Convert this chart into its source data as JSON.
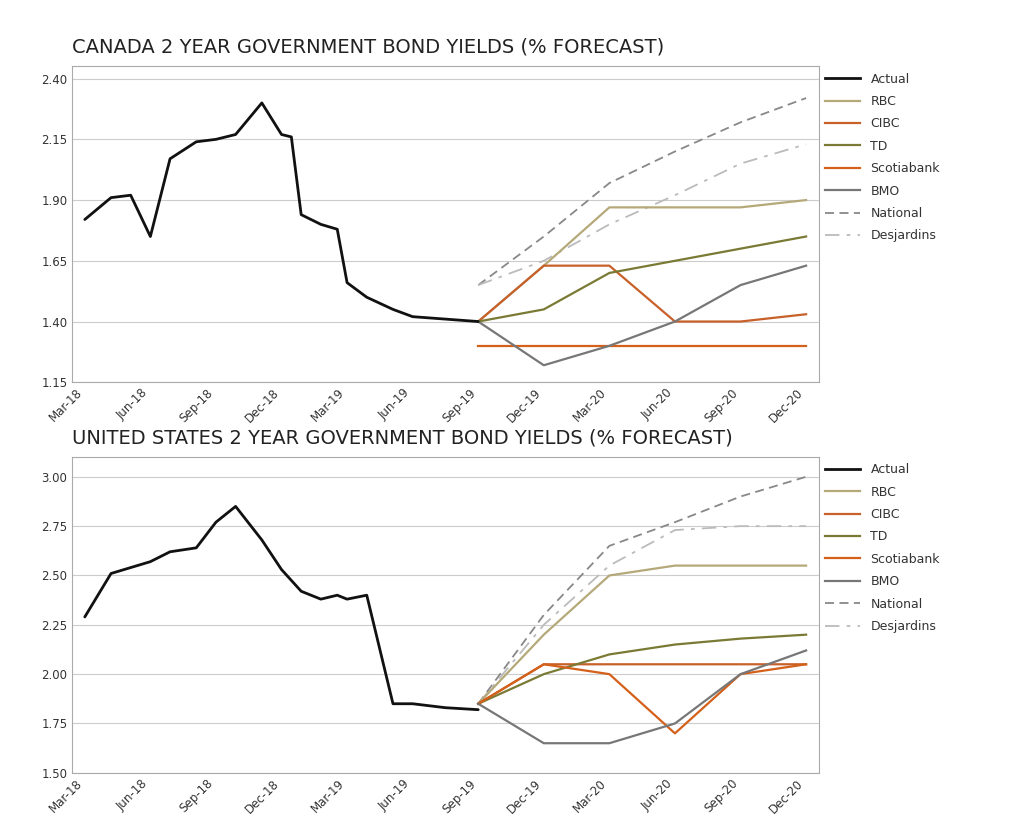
{
  "canada": {
    "title": "CANADA 2 YEAR GOVERNMENT BOND YIELDS (% FORECAST)",
    "ylim": [
      1.15,
      2.45
    ],
    "yticks": [
      1.15,
      1.4,
      1.65,
      1.9,
      2.15,
      2.4
    ],
    "actual_x": [
      0,
      0.4,
      0.7,
      1.0,
      1.3,
      1.7,
      2.0,
      2.3,
      2.7,
      3.0,
      3.15,
      3.3,
      3.6,
      3.85,
      4.0,
      4.3,
      4.7,
      5.0,
      6.0
    ],
    "actual_y": [
      1.82,
      1.91,
      1.92,
      1.75,
      2.07,
      2.14,
      2.15,
      2.17,
      2.3,
      2.17,
      2.16,
      1.84,
      1.8,
      1.78,
      1.56,
      1.5,
      1.45,
      1.42,
      1.4
    ],
    "rbc_x": [
      6,
      7,
      8,
      9,
      10,
      11
    ],
    "rbc_y": [
      1.4,
      1.63,
      1.87,
      1.87,
      1.87,
      1.9
    ],
    "cibc_x": [
      6,
      7,
      8,
      9,
      10,
      11
    ],
    "cibc_y": [
      1.4,
      1.63,
      1.63,
      1.4,
      1.4,
      1.43
    ],
    "td_x": [
      6,
      7,
      8,
      9,
      10,
      11
    ],
    "td_y": [
      1.4,
      1.45,
      1.6,
      1.65,
      1.7,
      1.75
    ],
    "scotiabank_x": [
      6,
      7,
      8,
      9,
      10,
      11
    ],
    "scotiabank_y": [
      1.3,
      1.3,
      1.3,
      1.3,
      1.3,
      1.3
    ],
    "bmo_x": [
      6,
      7,
      8,
      9,
      10,
      11
    ],
    "bmo_y": [
      1.4,
      1.22,
      1.3,
      1.4,
      1.55,
      1.63
    ],
    "national_x": [
      6,
      7,
      8,
      9,
      10,
      11
    ],
    "national_y": [
      1.55,
      1.75,
      1.97,
      2.1,
      2.22,
      2.32
    ],
    "desjardins_x": [
      6,
      7,
      8,
      9,
      10,
      11
    ],
    "desjardins_y": [
      1.55,
      1.65,
      1.8,
      1.92,
      2.05,
      2.13
    ]
  },
  "us": {
    "title": "UNITED STATES 2 YEAR GOVERNMENT BOND YIELDS (% FORECAST)",
    "ylim": [
      1.5,
      3.1
    ],
    "yticks": [
      1.5,
      1.75,
      2.0,
      2.25,
      2.5,
      2.75,
      3.0
    ],
    "actual_x": [
      0,
      0.4,
      0.7,
      1.0,
      1.3,
      1.7,
      2.0,
      2.3,
      2.7,
      3.0,
      3.3,
      3.6,
      3.85,
      4.0,
      4.3,
      4.7,
      5.0,
      5.5,
      6.0
    ],
    "actual_y": [
      2.29,
      2.51,
      2.54,
      2.57,
      2.62,
      2.64,
      2.77,
      2.85,
      2.68,
      2.53,
      2.42,
      2.38,
      2.4,
      2.38,
      2.4,
      1.85,
      1.85,
      1.83,
      1.82
    ],
    "rbc_x": [
      6,
      7,
      8,
      9,
      10,
      11
    ],
    "rbc_y": [
      1.85,
      2.2,
      2.5,
      2.55,
      2.55,
      2.55
    ],
    "cibc_x": [
      6,
      7,
      8,
      9,
      10,
      11
    ],
    "cibc_y": [
      1.85,
      2.05,
      2.05,
      2.05,
      2.05,
      2.05
    ],
    "td_x": [
      6,
      7,
      8,
      9,
      10,
      11
    ],
    "td_y": [
      1.85,
      2.0,
      2.1,
      2.15,
      2.18,
      2.2
    ],
    "scotiabank_x": [
      6,
      7,
      8,
      9,
      10,
      11
    ],
    "scotiabank_y": [
      1.85,
      2.05,
      2.0,
      1.7,
      2.0,
      2.05
    ],
    "bmo_x": [
      6,
      7,
      8,
      9,
      10,
      11
    ],
    "bmo_y": [
      1.85,
      1.65,
      1.65,
      1.75,
      2.0,
      2.12
    ],
    "national_x": [
      6,
      7,
      8,
      9,
      10,
      11
    ],
    "national_y": [
      1.85,
      2.3,
      2.65,
      2.77,
      2.9,
      3.0
    ],
    "desjardins_x": [
      6,
      7,
      8,
      9,
      10,
      11
    ],
    "desjardins_y": [
      1.85,
      2.25,
      2.55,
      2.73,
      2.75,
      2.75
    ]
  },
  "x_labels": [
    "Mar-18",
    "Jun-18",
    "Sep-18",
    "Dec-18",
    "Mar-19",
    "Jun-19",
    "Sep-19",
    "Dec-19",
    "Mar-20",
    "Jun-20",
    "Sep-20",
    "Dec-20"
  ],
  "x_positions": [
    0,
    1,
    2,
    3,
    4,
    5,
    6,
    7,
    8,
    9,
    10,
    11
  ],
  "colors": {
    "actual": "#111111",
    "rbc": "#b5a97a",
    "cibc": "#c8602a",
    "td": "#7a7a35",
    "scotiabank": "#d4601a",
    "bmo": "#777777",
    "national": "#888888",
    "desjardins": "#bbbbbb"
  },
  "bg_color": "#ffffff",
  "chart_bg": "#ffffff",
  "grid_color": "#cccccc",
  "box_color": "#aaaaaa",
  "title_fontsize": 14,
  "tick_fontsize": 8.5,
  "legend_fontsize": 9
}
